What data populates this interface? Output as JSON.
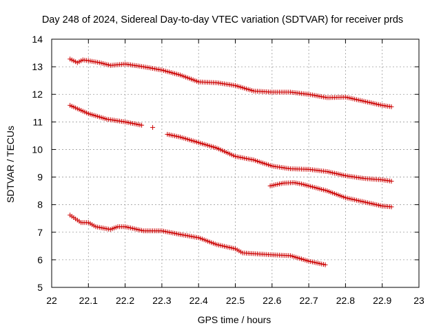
{
  "chart_data": {
    "type": "scatter",
    "title": "Day 248 of 2024, Sidereal Day-to-day VTEC variation (SDTVAR) for receiver prds",
    "xlabel": "GPS time / hours",
    "ylabel": "SDTVAR / TECUs",
    "xlim": [
      22,
      23
    ],
    "ylim": [
      5,
      14
    ],
    "grid": true,
    "xticks": [
      "22",
      "22.1",
      "22.2",
      "22.3",
      "22.4",
      "22.5",
      "22.6",
      "22.7",
      "22.8",
      "22.9",
      "23"
    ],
    "yticks": [
      "5",
      "6",
      "7",
      "8",
      "9",
      "10",
      "11",
      "12",
      "13",
      "14"
    ],
    "marker": "+",
    "color": "#cc0000",
    "series": [
      {
        "name": "track-1",
        "x_start": 22.05,
        "x_step": 0.005,
        "anchors": [
          [
            22.05,
            13.28
          ],
          [
            22.07,
            13.15
          ],
          [
            22.085,
            13.25
          ],
          [
            22.1,
            13.22
          ],
          [
            22.13,
            13.15
          ],
          [
            22.16,
            13.05
          ],
          [
            22.2,
            13.1
          ],
          [
            22.25,
            13.0
          ],
          [
            22.3,
            12.88
          ],
          [
            22.35,
            12.7
          ],
          [
            22.4,
            12.45
          ],
          [
            22.45,
            12.42
          ],
          [
            22.5,
            12.32
          ],
          [
            22.55,
            12.12
          ],
          [
            22.6,
            12.08
          ],
          [
            22.65,
            12.08
          ],
          [
            22.7,
            12.0
          ],
          [
            22.75,
            11.88
          ],
          [
            22.8,
            11.9
          ],
          [
            22.85,
            11.75
          ],
          [
            22.9,
            11.6
          ],
          [
            22.925,
            11.55
          ]
        ]
      },
      {
        "name": "track-2",
        "x_start": 22.05,
        "x_step": 0.005,
        "gaps": [
          [
            22.245,
            22.315
          ]
        ],
        "extra_points": [
          [
            22.275,
            10.8
          ]
        ],
        "anchors": [
          [
            22.05,
            11.6
          ],
          [
            22.1,
            11.3
          ],
          [
            22.15,
            11.1
          ],
          [
            22.2,
            11.0
          ],
          [
            22.245,
            10.88
          ],
          [
            22.315,
            10.55
          ],
          [
            22.35,
            10.45
          ],
          [
            22.4,
            10.25
          ],
          [
            22.45,
            10.05
          ],
          [
            22.5,
            9.75
          ],
          [
            22.55,
            9.62
          ],
          [
            22.6,
            9.4
          ],
          [
            22.65,
            9.3
          ],
          [
            22.7,
            9.28
          ],
          [
            22.75,
            9.2
          ],
          [
            22.8,
            9.05
          ],
          [
            22.85,
            8.95
          ],
          [
            22.9,
            8.9
          ],
          [
            22.925,
            8.85
          ]
        ]
      },
      {
        "name": "track-3",
        "x_start": 22.595,
        "x_step": 0.005,
        "anchors": [
          [
            22.595,
            8.68
          ],
          [
            22.63,
            8.78
          ],
          [
            22.66,
            8.8
          ],
          [
            22.68,
            8.75
          ],
          [
            22.7,
            8.68
          ],
          [
            22.75,
            8.5
          ],
          [
            22.8,
            8.25
          ],
          [
            22.85,
            8.1
          ],
          [
            22.9,
            7.95
          ],
          [
            22.925,
            7.92
          ]
        ]
      },
      {
        "name": "track-4",
        "x_start": 22.05,
        "x_step": 0.005,
        "anchors": [
          [
            22.05,
            7.62
          ],
          [
            22.08,
            7.35
          ],
          [
            22.1,
            7.35
          ],
          [
            22.12,
            7.2
          ],
          [
            22.16,
            7.1
          ],
          [
            22.18,
            7.2
          ],
          [
            22.2,
            7.2
          ],
          [
            22.25,
            7.05
          ],
          [
            22.3,
            7.05
          ],
          [
            22.35,
            6.92
          ],
          [
            22.4,
            6.8
          ],
          [
            22.45,
            6.55
          ],
          [
            22.5,
            6.4
          ],
          [
            22.52,
            6.25
          ],
          [
            22.6,
            6.18
          ],
          [
            22.65,
            6.15
          ],
          [
            22.7,
            5.95
          ],
          [
            22.745,
            5.82
          ]
        ]
      }
    ]
  }
}
